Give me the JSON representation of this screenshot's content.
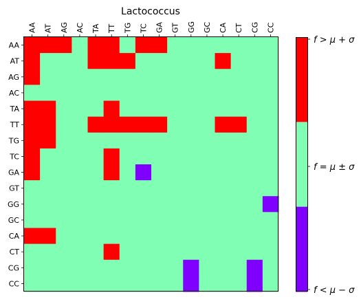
{
  "chart_data": {
    "type": "heatmap",
    "title": "Lactococcus",
    "x_categories": [
      "AA",
      "AT",
      "AG",
      "AC",
      "TA",
      "TT",
      "TG",
      "TC",
      "GA",
      "GT",
      "GG",
      "GC",
      "CA",
      "CT",
      "CG",
      "CC"
    ],
    "y_categories": [
      "AA",
      "AT",
      "AG",
      "AC",
      "TA",
      "TT",
      "TG",
      "TC",
      "GA",
      "GT",
      "GG",
      "GC",
      "CA",
      "CT",
      "CG",
      "CC"
    ],
    "levels": [
      {
        "value": -1,
        "label": "f < μ − σ",
        "color": "#8000ff"
      },
      {
        "value": 0,
        "label": "f = μ ± σ",
        "color": "#80ffb4"
      },
      {
        "value": 1,
        "label": "f > μ + σ",
        "color": "#ff0000"
      }
    ],
    "colorbar_labels": [
      "f > μ + σ",
      "f = μ ± σ",
      "f < μ − σ"
    ],
    "values": [
      [
        1,
        1,
        1,
        0,
        1,
        1,
        0,
        1,
        1,
        0,
        0,
        0,
        0,
        0,
        0,
        0
      ],
      [
        1,
        0,
        0,
        0,
        1,
        1,
        1,
        0,
        0,
        0,
        0,
        0,
        1,
        0,
        0,
        0
      ],
      [
        1,
        0,
        0,
        0,
        0,
        0,
        0,
        0,
        0,
        0,
        0,
        0,
        0,
        0,
        0,
        0
      ],
      [
        0,
        0,
        0,
        0,
        0,
        0,
        0,
        0,
        0,
        0,
        0,
        0,
        0,
        0,
        0,
        0
      ],
      [
        1,
        1,
        0,
        0,
        0,
        1,
        0,
        0,
        0,
        0,
        0,
        0,
        0,
        0,
        0,
        0
      ],
      [
        1,
        1,
        0,
        0,
        1,
        1,
        1,
        1,
        1,
        0,
        0,
        0,
        1,
        1,
        0,
        0
      ],
      [
        1,
        1,
        0,
        0,
        0,
        0,
        0,
        0,
        0,
        0,
        0,
        0,
        0,
        0,
        0,
        0
      ],
      [
        1,
        0,
        0,
        0,
        0,
        1,
        0,
        0,
        0,
        0,
        0,
        0,
        0,
        0,
        0,
        0
      ],
      [
        1,
        0,
        0,
        0,
        0,
        1,
        0,
        -1,
        0,
        0,
        0,
        0,
        0,
        0,
        0,
        0
      ],
      [
        0,
        0,
        0,
        0,
        0,
        0,
        0,
        0,
        0,
        0,
        0,
        0,
        0,
        0,
        0,
        0
      ],
      [
        0,
        0,
        0,
        0,
        0,
        0,
        0,
        0,
        0,
        0,
        0,
        0,
        0,
        0,
        0,
        -1
      ],
      [
        0,
        0,
        0,
        0,
        0,
        0,
        0,
        0,
        0,
        0,
        0,
        0,
        0,
        0,
        0,
        0
      ],
      [
        1,
        1,
        0,
        0,
        0,
        0,
        0,
        0,
        0,
        0,
        0,
        0,
        0,
        0,
        0,
        0
      ],
      [
        0,
        0,
        0,
        0,
        0,
        1,
        0,
        0,
        0,
        0,
        0,
        0,
        0,
        0,
        0,
        0
      ],
      [
        0,
        0,
        0,
        0,
        0,
        0,
        0,
        0,
        0,
        0,
        -1,
        0,
        0,
        0,
        -1,
        0
      ],
      [
        0,
        0,
        0,
        0,
        0,
        0,
        0,
        0,
        0,
        0,
        -1,
        0,
        0,
        0,
        -1,
        0
      ]
    ],
    "grid": false,
    "legend": "colorbar-right"
  }
}
